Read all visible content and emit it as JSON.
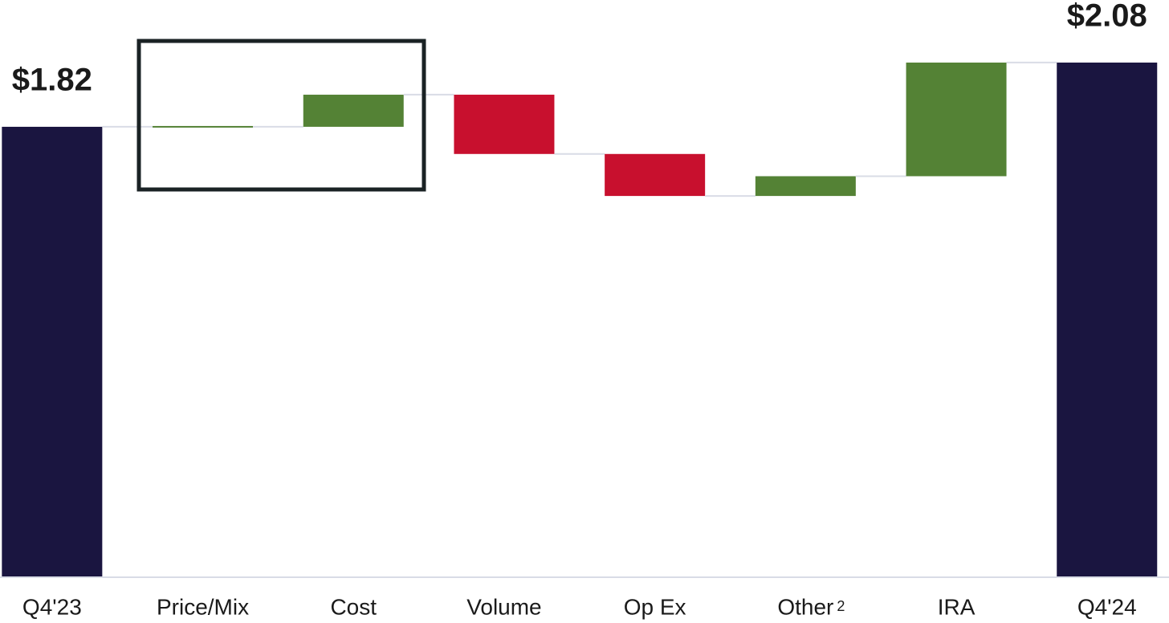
{
  "chart_data": {
    "type": "waterfall",
    "categories": [
      "Q4'23",
      "Price/Mix",
      "Cost",
      "Volume",
      "Op Ex",
      "Other",
      "IRA",
      "Q4'24"
    ],
    "category_superscripts": [
      null,
      null,
      null,
      null,
      null,
      "2",
      null,
      null
    ],
    "measures": [
      "total",
      "relative",
      "relative",
      "relative",
      "relative",
      "relative",
      "relative",
      "total"
    ],
    "values": [
      1.82,
      0,
      0.13,
      -0.24,
      -0.17,
      0.08,
      0.46,
      2.08
    ],
    "value_labels": [
      "$1.82",
      null,
      null,
      null,
      null,
      null,
      null,
      "$2.08"
    ],
    "colors": {
      "total": "#1a1540",
      "increase": "#548235",
      "decrease": "#c8102e"
    },
    "ylim": [
      0,
      2.2
    ]
  }
}
